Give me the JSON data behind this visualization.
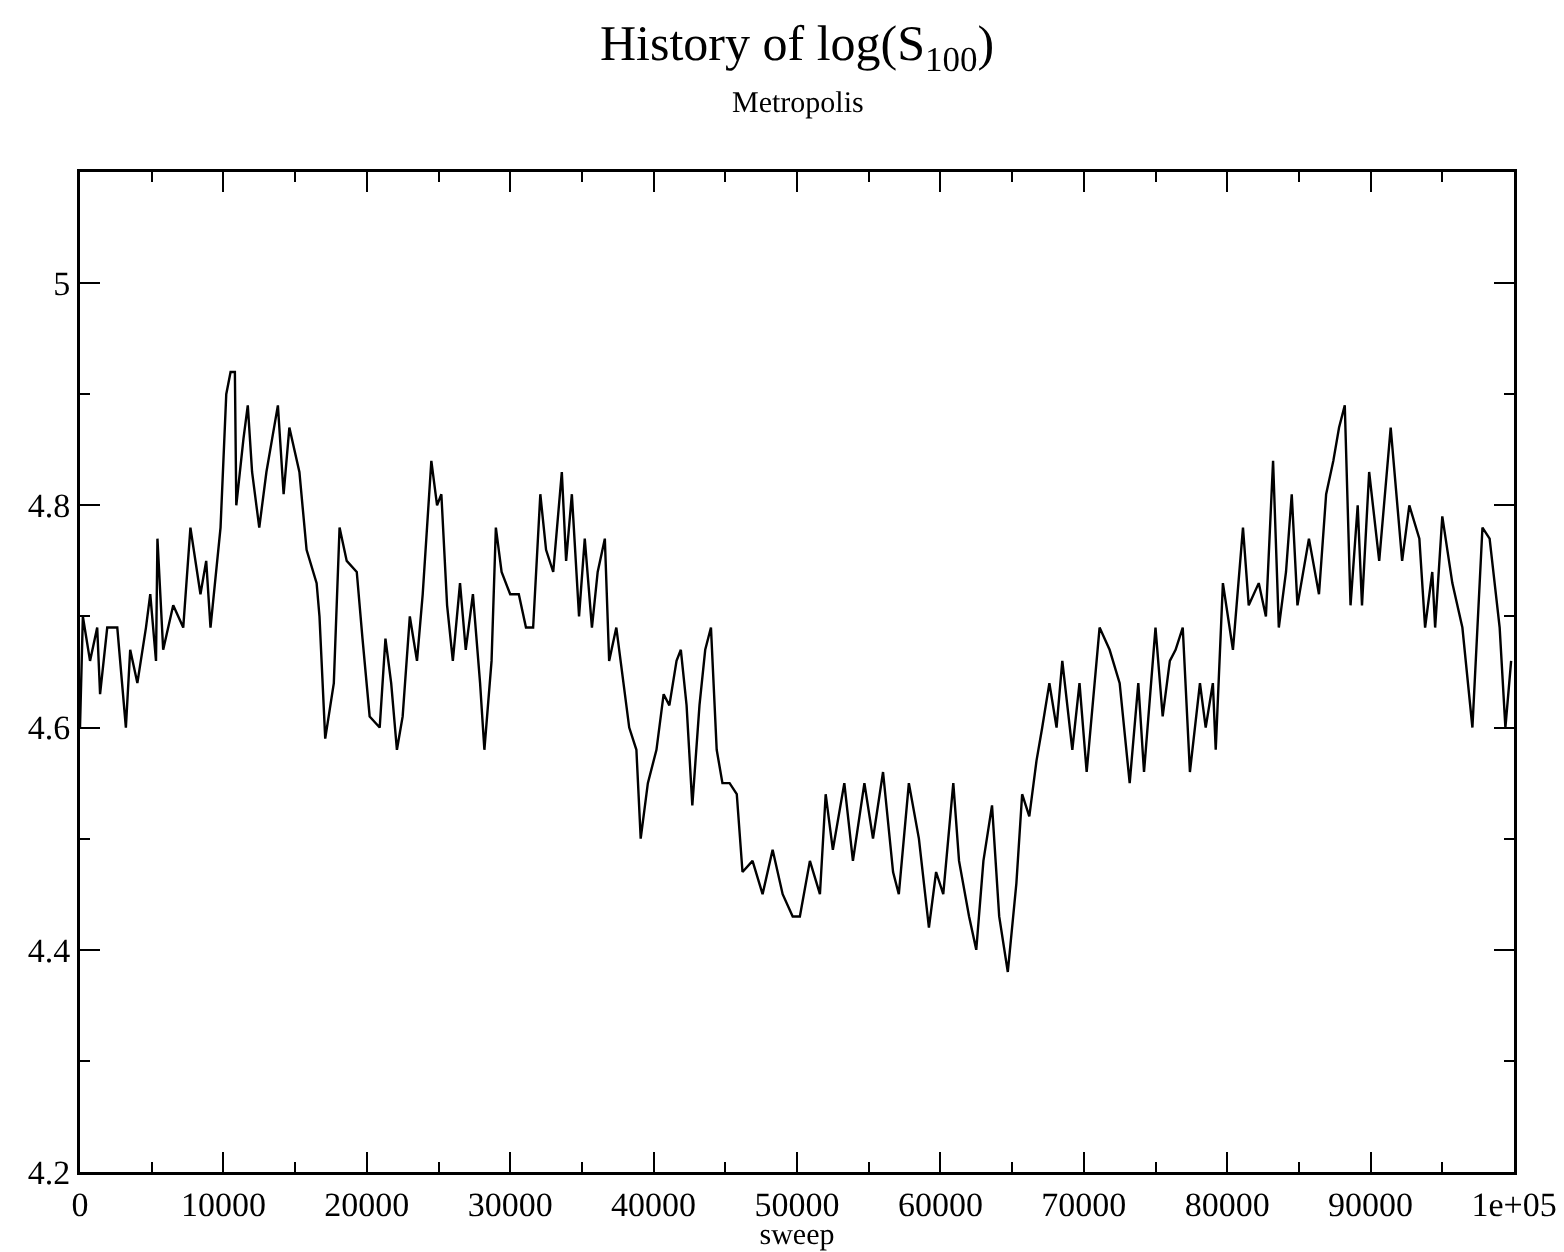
{
  "chart_data": {
    "type": "line",
    "title": "History of log(S$_{100}$)",
    "subtitle": "Metropolis",
    "xlabel": "sweep",
    "xlim": [
      0,
      100000
    ],
    "ylim": [
      4.2,
      5.1
    ],
    "xticks": [
      0,
      {
        "value": 5000,
        "label": null
      },
      10000,
      {
        "value": 15000,
        "label": null
      },
      20000,
      {
        "value": 25000,
        "label": null
      },
      30000,
      {
        "value": 35000,
        "label": null
      },
      40000,
      {
        "value": 45000,
        "label": null
      },
      50000,
      {
        "value": 55000,
        "label": null
      },
      60000,
      {
        "value": 65000,
        "label": null
      },
      70000,
      {
        "value": 75000,
        "label": null
      },
      80000,
      {
        "value": 85000,
        "label": null
      },
      90000,
      {
        "value": 95000,
        "label": null
      },
      {
        "value": 100000,
        "label": "1e+05"
      }
    ],
    "yticks": [
      4.2,
      {
        "value": 4.3,
        "label": null
      },
      4.4,
      {
        "value": 4.5,
        "label": null
      },
      4.6,
      {
        "value": 4.7,
        "label": null
      },
      4.8,
      {
        "value": 4.9,
        "label": null
      },
      5,
      {
        "value": 5.1,
        "label": null
      }
    ],
    "line_style": "solid",
    "series": [
      {
        "color": "#000000",
        "x": [
          0,
          200,
          700,
          1200,
          1400,
          1900,
          2600,
          3200,
          3500,
          4000,
          4600,
          4900,
          5300,
          5400,
          5800,
          6500,
          7200,
          7700,
          8400,
          8800,
          9100,
          9800,
          10200,
          10500,
          10800,
          10900,
          11400,
          11700,
          12000,
          12500,
          13000,
          13400,
          13800,
          14200,
          14600,
          15300,
          15800,
          16500,
          16700,
          17100,
          17700,
          18100,
          18600,
          19300,
          19700,
          20200,
          20900,
          21300,
          21700,
          22100,
          22500,
          23000,
          23500,
          23900,
          24500,
          24900,
          25200,
          25600,
          26000,
          26500,
          26900,
          27400,
          27900,
          28200,
          28700,
          29000,
          29400,
          30000,
          30600,
          31100,
          31600,
          32100,
          32500,
          33000,
          33600,
          33900,
          34300,
          34800,
          35200,
          35700,
          36100,
          36600,
          36900,
          37400,
          37900,
          38300,
          38800,
          39100,
          39600,
          40200,
          40700,
          41100,
          41600,
          41900,
          42300,
          42700,
          43200,
          43600,
          44000,
          44400,
          44800,
          45300,
          45800,
          46200,
          46900,
          47600,
          48300,
          49000,
          49700,
          50200,
          50900,
          51600,
          52000,
          52500,
          53300,
          53900,
          54700,
          55300,
          56000,
          56700,
          57100,
          57800,
          58500,
          59200,
          59700,
          60200,
          60900,
          61300,
          62000,
          62500,
          63000,
          63600,
          64100,
          64700,
          65300,
          65700,
          66200,
          66700,
          67100,
          67600,
          68100,
          68500,
          69200,
          69700,
          70200,
          71100,
          71800,
          72500,
          73200,
          73800,
          74200,
          75000,
          75500,
          76000,
          76400,
          76900,
          77400,
          78100,
          78500,
          79000,
          79200,
          79700,
          80400,
          81100,
          81500,
          82200,
          82700,
          83200,
          83600,
          84100,
          84500,
          84900,
          85700,
          86400,
          86900,
          87400,
          87800,
          88200,
          88600,
          89100,
          89400,
          89900,
          90600,
          91400,
          92200,
          92700,
          93400,
          93800,
          94300,
          94500,
          95000,
          95700,
          96400,
          97100,
          97800,
          98300,
          99000,
          99400,
          99800
        ],
        "values": [
          4.6,
          4.7,
          4.66,
          4.69,
          4.63,
          4.69,
          4.69,
          4.6,
          4.67,
          4.64,
          4.69,
          4.72,
          4.66,
          4.77,
          4.67,
          4.71,
          4.69,
          4.78,
          4.72,
          4.75,
          4.69,
          4.78,
          4.9,
          4.92,
          4.92,
          4.8,
          4.86,
          4.89,
          4.83,
          4.78,
          4.83,
          4.86,
          4.89,
          4.81,
          4.87,
          4.83,
          4.76,
          4.73,
          4.7,
          4.59,
          4.64,
          4.78,
          4.75,
          4.74,
          4.68,
          4.61,
          4.6,
          4.68,
          4.64,
          4.58,
          4.61,
          4.7,
          4.66,
          4.72,
          4.84,
          4.8,
          4.81,
          4.71,
          4.66,
          4.73,
          4.67,
          4.72,
          4.64,
          4.58,
          4.66,
          4.78,
          4.74,
          4.72,
          4.72,
          4.69,
          4.69,
          4.81,
          4.76,
          4.74,
          4.83,
          4.75,
          4.81,
          4.7,
          4.77,
          4.69,
          4.74,
          4.77,
          4.66,
          4.69,
          4.64,
          4.6,
          4.58,
          4.5,
          4.55,
          4.58,
          4.63,
          4.62,
          4.66,
          4.67,
          4.62,
          4.53,
          4.62,
          4.67,
          4.69,
          4.58,
          4.55,
          4.55,
          4.54,
          4.47,
          4.48,
          4.45,
          4.49,
          4.45,
          4.43,
          4.43,
          4.48,
          4.45,
          4.54,
          4.49,
          4.55,
          4.48,
          4.55,
          4.5,
          4.56,
          4.47,
          4.45,
          4.55,
          4.5,
          4.42,
          4.47,
          4.45,
          4.55,
          4.48,
          4.43,
          4.4,
          4.48,
          4.53,
          4.43,
          4.38,
          4.46,
          4.54,
          4.52,
          4.57,
          4.6,
          4.64,
          4.6,
          4.66,
          4.58,
          4.64,
          4.56,
          4.69,
          4.67,
          4.64,
          4.55,
          4.64,
          4.56,
          4.69,
          4.61,
          4.66,
          4.67,
          4.69,
          4.56,
          4.64,
          4.6,
          4.64,
          4.58,
          4.73,
          4.67,
          4.78,
          4.71,
          4.73,
          4.7,
          4.84,
          4.69,
          4.74,
          4.81,
          4.71,
          4.77,
          4.72,
          4.81,
          4.84,
          4.87,
          4.89,
          4.71,
          4.8,
          4.71,
          4.83,
          4.75,
          4.87,
          4.75,
          4.8,
          4.77,
          4.69,
          4.74,
          4.69,
          4.79,
          4.73,
          4.69,
          4.6,
          4.78,
          4.77,
          4.69,
          4.6,
          4.66
        ]
      }
    ]
  }
}
